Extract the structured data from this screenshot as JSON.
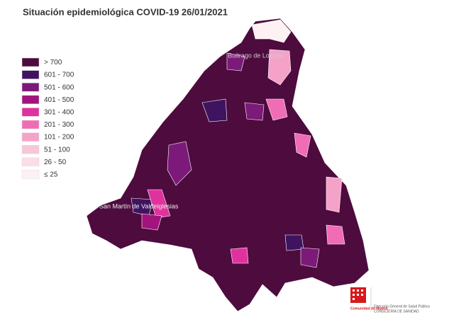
{
  "header": {
    "title": "Situación epidemiológica COVID-19  26/01/2021"
  },
  "legend": {
    "items": [
      {
        "label": "> 700",
        "color": "#4e0b3e"
      },
      {
        "label": "601 - 700",
        "color": "#3e1460"
      },
      {
        "label": "501 - 600",
        "color": "#7c1a7a"
      },
      {
        "label": "401 - 500",
        "color": "#a3137e"
      },
      {
        "label": "301 - 400",
        "color": "#e0329c"
      },
      {
        "label": "201 - 300",
        "color": "#f06cb6"
      },
      {
        "label": "101 - 200",
        "color": "#f5a2c9"
      },
      {
        "label": "51 - 100",
        "color": "#f8c7d5"
      },
      {
        "label": "26 - 50",
        "color": "#fbdee5"
      },
      {
        "label": "≤ 25",
        "color": "#fdf1f3"
      }
    ]
  },
  "map": {
    "places": [
      "Buitrago de Lozoya",
      "San Martín de Valdeiglesias"
    ]
  },
  "footer": {
    "brand": "Comunidad de Madrid",
    "department": "Dirección General de Salud Pública",
    "ministry": "CONSEJERÍA DE SANIDAD"
  }
}
